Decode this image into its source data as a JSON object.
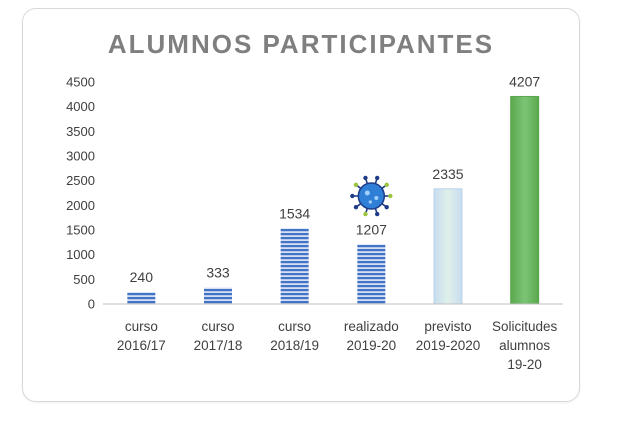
{
  "chart_data": {
    "type": "bar",
    "title": "ALUMNOS PARTICIPANTES",
    "xlabel": "",
    "ylabel": "",
    "ylim": [
      0,
      4500
    ],
    "yticks": [
      0,
      500,
      1000,
      1500,
      2000,
      2500,
      3000,
      3500,
      4000,
      4500
    ],
    "grid": false,
    "legend": "none",
    "categories": [
      [
        "curso",
        "2016/17"
      ],
      [
        "curso",
        "2017/18"
      ],
      [
        "curso",
        "2018/19"
      ],
      [
        "realizado",
        "2019-20"
      ],
      [
        "previsto",
        "2019-2020"
      ],
      [
        "Solicitudes",
        "alumnos",
        "19-20"
      ]
    ],
    "values": [
      240,
      333,
      1534,
      1207,
      2335,
      4207
    ],
    "data_labels": [
      "240",
      "333",
      "1534",
      "1207",
      "2335",
      "4207"
    ],
    "bar_styles": [
      "striped-blue",
      "striped-blue",
      "striped-blue",
      "striped-blue",
      "pale-teal",
      "green"
    ],
    "label_colors": [
      "#404040",
      "#404040",
      "#404040",
      "#e00000",
      "#404040",
      "#404040"
    ],
    "annotation_icon": "virus-icon"
  },
  "colors": {
    "blue_stripe_dark": "#4472c4",
    "blue_stripe_light": "#d6e0f5",
    "pale_teal_fill": "#dff0ea",
    "pale_teal_edge": "#b9d4e8",
    "green_fill": "#7cc576",
    "green_edge": "#5aa84e",
    "axis": "#bfbfbf",
    "text": "#404040",
    "virus_blue": "#2f7fd6",
    "virus_dark": "#1f3c88",
    "virus_accent": "#9bc53d"
  }
}
